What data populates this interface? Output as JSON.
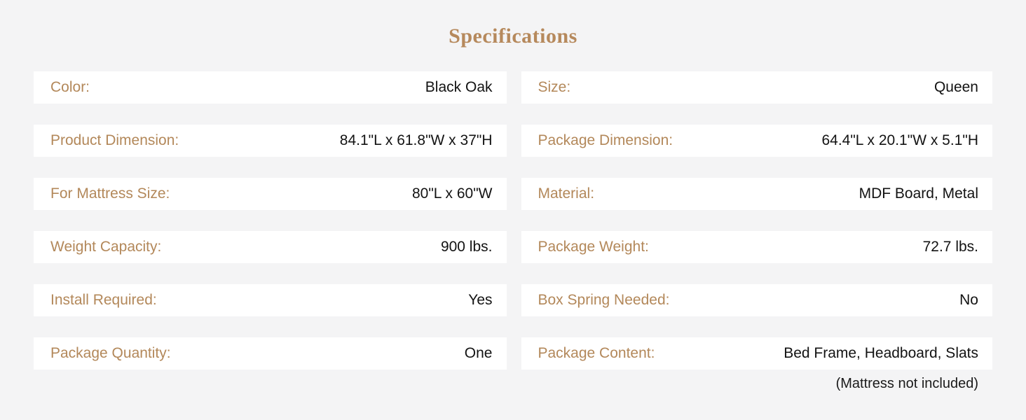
{
  "title": "Specifications",
  "colors": {
    "accent_label": "#b3885a",
    "title_color": "#b6895c",
    "value_color": "#131313",
    "row_background": "#ffffff",
    "page_background": "#f4f4f5"
  },
  "specs": {
    "left": [
      {
        "label": "Color:",
        "value": "Black Oak"
      },
      {
        "label": "Product Dimension:",
        "value": "84.1\"L x 61.8\"W x 37\"H"
      },
      {
        "label": "For Mattress Size:",
        "value": "80\"L x 60\"W"
      },
      {
        "label": "Weight Capacity:",
        "value": "900 lbs."
      },
      {
        "label": "Install Required:",
        "value": "Yes"
      },
      {
        "label": "Package Quantity:",
        "value": "One"
      }
    ],
    "right": [
      {
        "label": "Size:",
        "value": "Queen"
      },
      {
        "label": "Package Dimension:",
        "value": "64.4\"L x 20.1\"W x 5.1\"H"
      },
      {
        "label": "Material:",
        "value": "MDF Board, Metal"
      },
      {
        "label": "Package Weight:",
        "value": "72.7 lbs."
      },
      {
        "label": "Box Spring Needed:",
        "value": "No"
      },
      {
        "label": "Package Content:",
        "value": "Bed Frame, Headboard, Slats"
      }
    ],
    "footnote": "(Mattress not included)"
  }
}
